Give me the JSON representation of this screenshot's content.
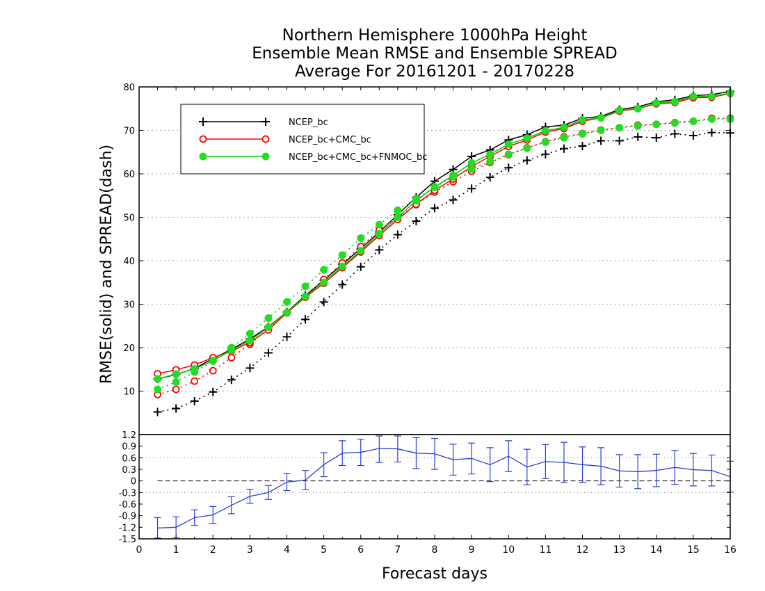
{
  "header": {
    "title_line1": "Northern Hemisphere 1000hPa Height",
    "title_line2": "Ensemble Mean RMSE and Ensemble SPREAD",
    "title_line3": "Average For 20161201 - 20170228"
  },
  "chart_data": [
    {
      "type": "line",
      "ylabel": "RMSE(solid) and SPREAD(dash)",
      "xlim": [
        0,
        16
      ],
      "ylim": [
        0,
        80
      ],
      "yticks": [
        10,
        20,
        30,
        40,
        50,
        60,
        70,
        80
      ],
      "grid": true,
      "legend_position": "top-left",
      "x": [
        0.5,
        1.0,
        1.5,
        2.0,
        2.5,
        3.0,
        3.5,
        4.0,
        4.5,
        5.0,
        5.5,
        6.0,
        6.5,
        7.0,
        7.5,
        8.0,
        8.5,
        9.0,
        9.5,
        10.0,
        10.5,
        11.0,
        11.5,
        12.0,
        12.5,
        13.0,
        13.5,
        14.0,
        14.5,
        15.0,
        15.5,
        16.0
      ],
      "series": [
        {
          "name": "NCEP_bc",
          "color": "#000000",
          "marker": "plus",
          "rmse": [
            12.8,
            13.8,
            15.2,
            17.5,
            19.6,
            22.0,
            24.8,
            28.2,
            32.0,
            35.5,
            39.2,
            42.8,
            46.6,
            50.6,
            54.6,
            58.3,
            61.0,
            64.0,
            65.5,
            67.8,
            69.0,
            70.8,
            71.2,
            72.8,
            73.2,
            74.8,
            75.4,
            76.6,
            77.0,
            78.0,
            78.2,
            79.0
          ],
          "spread": [
            5.2,
            6.0,
            7.7,
            9.8,
            12.6,
            15.3,
            18.8,
            22.5,
            26.5,
            30.5,
            34.5,
            38.6,
            42.5,
            46.0,
            49.1,
            52.1,
            54.0,
            56.6,
            59.2,
            61.4,
            63.1,
            64.5,
            65.8,
            66.4,
            67.6,
            67.6,
            68.5,
            68.3,
            69.2,
            68.8,
            69.5,
            69.4
          ]
        },
        {
          "name": "NCEP_bc+CMC_bc",
          "color": "#ff0000",
          "marker": "open-circle",
          "rmse": [
            14.0,
            14.9,
            16.0,
            17.7,
            19.2,
            21.2,
            24.1,
            28.0,
            31.6,
            34.8,
            38.4,
            42.0,
            45.8,
            49.5,
            53.0,
            56.2,
            58.8,
            61.7,
            64.0,
            66.3,
            67.8,
            69.6,
            70.4,
            72.1,
            72.9,
            74.4,
            75.0,
            76.1,
            76.4,
            77.5,
            77.6,
            78.5
          ],
          "spread": [
            9.2,
            10.4,
            12.3,
            14.7,
            17.7,
            20.8,
            24.4,
            28.1,
            31.7,
            35.7,
            39.5,
            43.3,
            47.0,
            50.0,
            52.9,
            55.8,
            58.2,
            60.6,
            62.6,
            64.4,
            66.0,
            67.4,
            68.5,
            69.3,
            70.1,
            70.6,
            71.2,
            71.4,
            71.8,
            72.1,
            72.8,
            72.8
          ]
        },
        {
          "name": "NCEP_bc+CMC_bc+FNMOC_bc",
          "color": "#00cc00",
          "marker": "filled-circle",
          "rmse": [
            12.8,
            13.9,
            15.1,
            17.0,
            19.4,
            21.6,
            24.7,
            28.1,
            31.8,
            35.0,
            38.7,
            42.3,
            46.2,
            50.0,
            53.8,
            57.0,
            59.6,
            62.5,
            64.5,
            66.8,
            68.2,
            69.9,
            70.7,
            72.4,
            72.9,
            74.6,
            75.0,
            76.3,
            76.6,
            77.8,
            77.8,
            78.6
          ],
          "spread": [
            10.4,
            12.1,
            14.4,
            16.9,
            20.0,
            23.2,
            26.8,
            30.5,
            34.1,
            37.9,
            41.3,
            45.2,
            48.3,
            51.6,
            54.3,
            56.9,
            59.3,
            61.1,
            62.8,
            64.5,
            65.9,
            67.3,
            68.3,
            69.2,
            70.0,
            70.6,
            71.0,
            71.4,
            71.7,
            72.1,
            72.6,
            72.6
          ]
        }
      ]
    },
    {
      "type": "line",
      "xlabel": "Forecast days",
      "xlim": [
        0,
        16
      ],
      "ylim": [
        -1.5,
        1.2
      ],
      "xticks": [
        0,
        1,
        2,
        3,
        4,
        5,
        6,
        7,
        8,
        9,
        10,
        11,
        12,
        13,
        14,
        15,
        16
      ],
      "yticks": [
        -1.5,
        -1.2,
        -0.9,
        -0.6,
        -0.3,
        0,
        0.3,
        0.6,
        0.9,
        1.2
      ],
      "ytick_labels": [
        "-1.5",
        "-1.2",
        "-0.9",
        "-0.6",
        "-0.3",
        "0",
        "0.3",
        "0.6",
        "0.9",
        "1.2"
      ],
      "xtick_labels": [
        "0",
        "1",
        "2",
        "3",
        "4",
        "5",
        "6",
        "7",
        "8",
        "9",
        "10",
        "11",
        "12",
        "13",
        "14",
        "15",
        "16"
      ],
      "grid": false,
      "color": "#2b3fd6",
      "x": [
        0.5,
        1.0,
        1.5,
        2.0,
        2.5,
        3.0,
        3.5,
        4.0,
        4.5,
        5.0,
        5.5,
        6.0,
        6.5,
        7.0,
        7.5,
        8.0,
        8.5,
        9.0,
        9.5,
        10.0,
        10.5,
        11.0,
        11.5,
        12.0,
        12.5,
        13.0,
        13.5,
        14.0,
        14.5,
        15.0,
        15.5,
        16.0
      ],
      "values": [
        -1.22,
        -1.2,
        -0.95,
        -0.88,
        -0.63,
        -0.4,
        -0.3,
        -0.03,
        0.02,
        0.42,
        0.72,
        0.74,
        0.84,
        0.83,
        0.72,
        0.7,
        0.55,
        0.58,
        0.42,
        0.64,
        0.36,
        0.5,
        0.48,
        0.42,
        0.38,
        0.26,
        0.24,
        0.27,
        0.35,
        0.29,
        0.27,
        0.11
      ],
      "errors": [
        0.27,
        0.27,
        0.2,
        0.22,
        0.22,
        0.18,
        0.18,
        0.22,
        0.25,
        0.31,
        0.32,
        0.34,
        0.36,
        0.34,
        0.4,
        0.4,
        0.4,
        0.4,
        0.44,
        0.4,
        0.46,
        0.44,
        0.52,
        0.46,
        0.48,
        0.42,
        0.44,
        0.42,
        0.44,
        0.42,
        0.4,
        0.4
      ],
      "zero_line": "dashed",
      "reference_levels": [
        0.6,
        -0.3
      ]
    }
  ]
}
